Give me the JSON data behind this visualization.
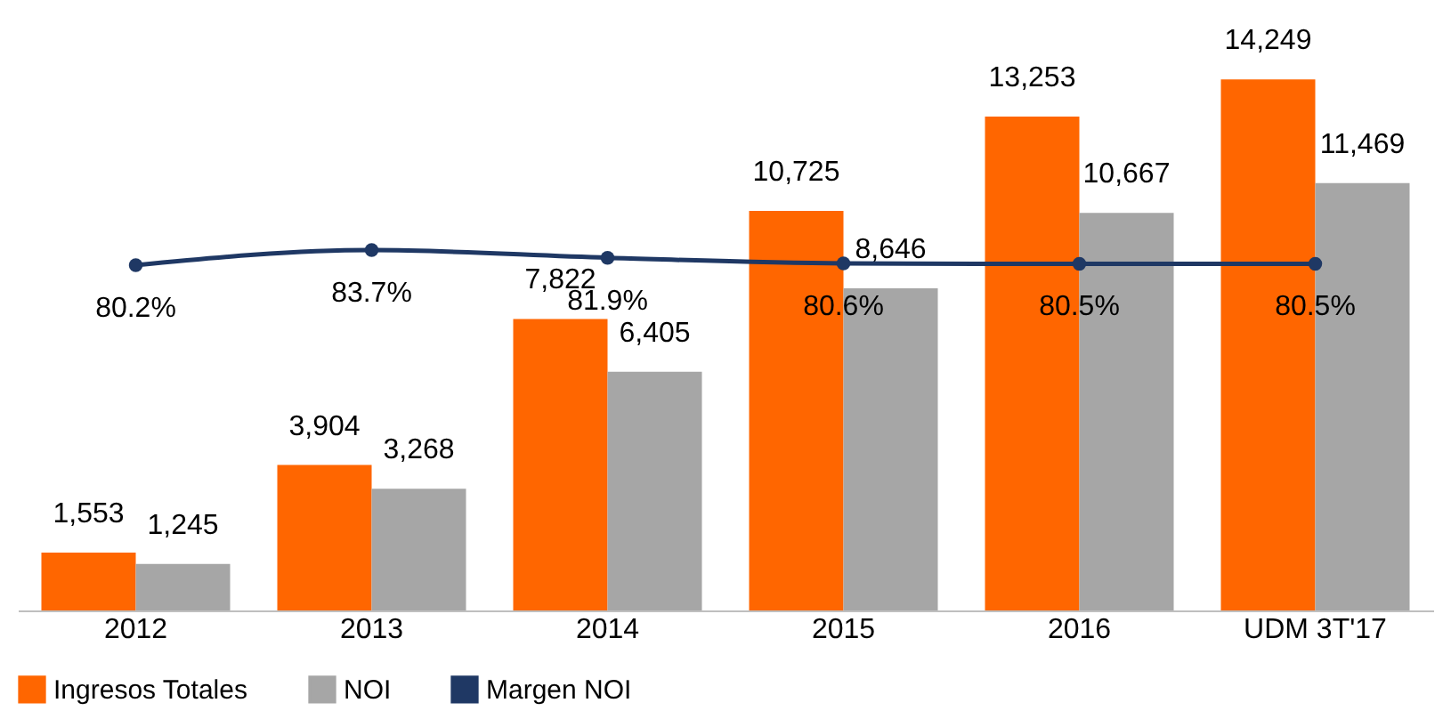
{
  "chart_data": {
    "type": "bar",
    "categories": [
      "2012",
      "2013",
      "2014",
      "2015",
      "2016",
      "UDM 3T'17"
    ],
    "series": [
      {
        "name": "Ingresos Totales",
        "color": "#ff6600",
        "values": [
          1553,
          3904,
          7822,
          10725,
          13253,
          14249
        ],
        "value_labels": [
          "1,553",
          "3,904",
          "7,822",
          "10,725",
          "13,253",
          "14,249"
        ]
      },
      {
        "name": "NOI",
        "color": "#a6a6a6",
        "values": [
          1245,
          3268,
          6405,
          8646,
          10667,
          11469
        ],
        "value_labels": [
          "1,245",
          "3,268",
          "6,405",
          "8,646",
          "10,667",
          "11,469"
        ]
      },
      {
        "name": "Margen NOI",
        "type": "line",
        "axis": "y2",
        "marker": "circle",
        "color": "#1f3864",
        "values": [
          80.2,
          83.7,
          81.9,
          80.6,
          80.5,
          80.5
        ],
        "value_labels": [
          "80.2%",
          "83.7%",
          "81.9%",
          "80.6%",
          "80.5%",
          "80.5%"
        ]
      }
    ],
    "tick_labels": "x",
    "grid": false,
    "legend": "bottom"
  }
}
